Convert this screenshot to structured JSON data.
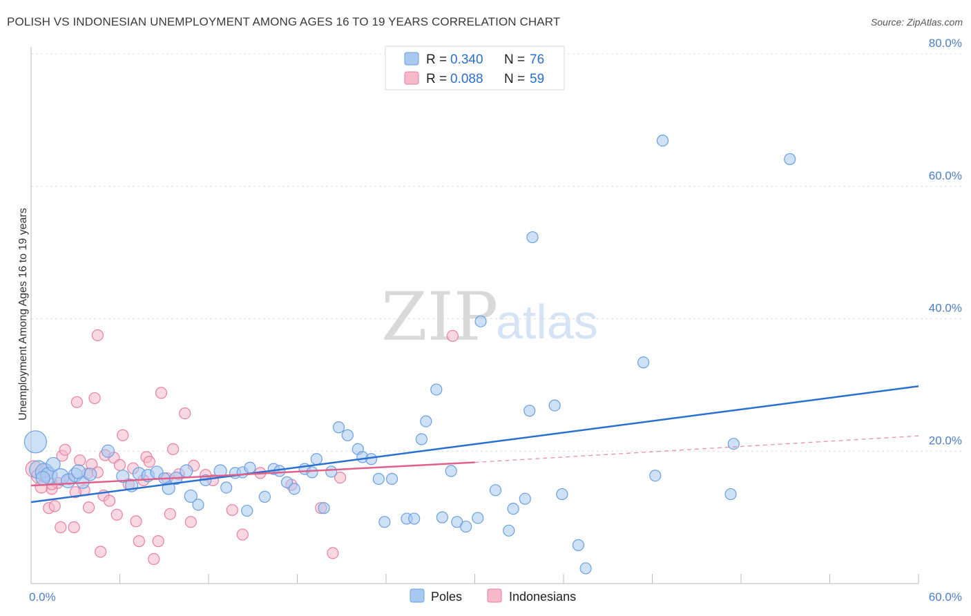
{
  "title": "POLISH VS INDONESIAN UNEMPLOYMENT AMONG AGES 16 TO 19 YEARS CORRELATION CHART",
  "source": "Source: ZipAtlas.com",
  "watermark": {
    "zip": "ZIP",
    "atlas": "atlas"
  },
  "colors": {
    "poles": "#a8c8f0",
    "poles_stroke": "#6a9fe0",
    "poles_line": "#2a6fd0",
    "indonesians": "#f6b8cb",
    "indonesians_stroke": "#e87fa0",
    "indonesians_line": "#e0608a",
    "axis_text": "#4a7ec9",
    "grid": "#dcdcdc"
  },
  "legend": {
    "poles": {
      "r_label": "R = ",
      "r_value": "0.340",
      "n_label": "N = ",
      "n_value": "76"
    },
    "indonesians": {
      "r_label": "R = ",
      "r_value": "0.088",
      "n_label": "N = ",
      "n_value": "59"
    }
  },
  "chart_data": {
    "type": "scatter",
    "ylabel": "Unemployment Among Ages 16 to 19 years",
    "xlim": [
      0,
      60
    ],
    "ylim": [
      0,
      80
    ],
    "x_tick_labels": [
      "0.0%",
      "60.0%"
    ],
    "y_tick_labels": [
      "20.0%",
      "40.0%",
      "60.0%",
      "80.0%"
    ],
    "y_tick_values": [
      20,
      40,
      60,
      80
    ],
    "series": [
      {
        "name": "Poles",
        "trend": {
          "x": [
            0,
            60
          ],
          "y": [
            12.3,
            29.8
          ],
          "style": "solid"
        },
        "points": [
          [
            0.3,
            21.4,
            16
          ],
          [
            0.5,
            17.2,
            13
          ],
          [
            0.9,
            16.8,
            13
          ],
          [
            1.2,
            16.3,
            12
          ],
          [
            1.5,
            18.0,
            10
          ],
          [
            2.0,
            16.1,
            12
          ],
          [
            2.5,
            15.5,
            10
          ],
          [
            3.0,
            16.4,
            10
          ],
          [
            3.5,
            15.3,
            9
          ],
          [
            4.0,
            16.5,
            9
          ],
          [
            5.2,
            20.0,
            9
          ],
          [
            6.2,
            16.2,
            9
          ],
          [
            6.8,
            14.8,
            9
          ],
          [
            7.3,
            16.6,
            9
          ],
          [
            7.9,
            16.3,
            9
          ],
          [
            8.5,
            16.8,
            9
          ],
          [
            9.0,
            15.9,
            8
          ],
          [
            9.3,
            14.4,
            9
          ],
          [
            9.8,
            15.9,
            9
          ],
          [
            10.5,
            17.0,
            9
          ],
          [
            10.8,
            13.2,
            9
          ],
          [
            11.3,
            11.9,
            8
          ],
          [
            11.8,
            15.6,
            8
          ],
          [
            12.8,
            17.0,
            9
          ],
          [
            13.2,
            14.5,
            8
          ],
          [
            13.8,
            16.7,
            8
          ],
          [
            14.3,
            16.8,
            8
          ],
          [
            14.6,
            11.0,
            8
          ],
          [
            14.8,
            17.5,
            8
          ],
          [
            15.8,
            13.1,
            8
          ],
          [
            16.4,
            17.3,
            8
          ],
          [
            16.8,
            17.0,
            8
          ],
          [
            17.3,
            15.3,
            8
          ],
          [
            17.8,
            14.3,
            8
          ],
          [
            18.5,
            17.3,
            8
          ],
          [
            19.0,
            16.8,
            8
          ],
          [
            19.3,
            18.8,
            8
          ],
          [
            19.8,
            11.4,
            8
          ],
          [
            20.3,
            16.9,
            8
          ],
          [
            20.8,
            23.6,
            8
          ],
          [
            21.4,
            22.4,
            8
          ],
          [
            22.1,
            20.3,
            8
          ],
          [
            22.4,
            19.1,
            8
          ],
          [
            23.0,
            18.8,
            8
          ],
          [
            23.5,
            15.8,
            8
          ],
          [
            23.9,
            9.3,
            8
          ],
          [
            24.4,
            15.8,
            8
          ],
          [
            25.4,
            9.8,
            8
          ],
          [
            25.9,
            9.8,
            8
          ],
          [
            26.4,
            21.8,
            8
          ],
          [
            26.7,
            24.5,
            8
          ],
          [
            27.4,
            29.3,
            8
          ],
          [
            27.8,
            10.0,
            8
          ],
          [
            28.4,
            17.0,
            8
          ],
          [
            28.8,
            9.3,
            8
          ],
          [
            29.4,
            8.6,
            8
          ],
          [
            30.4,
            39.6,
            8
          ],
          [
            30.2,
            9.9,
            8
          ],
          [
            31.4,
            14.1,
            8
          ],
          [
            32.3,
            8.0,
            8
          ],
          [
            32.6,
            11.3,
            8
          ],
          [
            33.4,
            12.8,
            8
          ],
          [
            33.7,
            26.1,
            8
          ],
          [
            33.9,
            52.3,
            8
          ],
          [
            35.4,
            26.9,
            8
          ],
          [
            35.9,
            13.5,
            8
          ],
          [
            37.0,
            5.8,
            8
          ],
          [
            37.5,
            2.3,
            8
          ],
          [
            41.4,
            33.4,
            8
          ],
          [
            42.2,
            16.3,
            8
          ],
          [
            42.7,
            66.9,
            8
          ],
          [
            47.3,
            13.5,
            8
          ],
          [
            47.5,
            21.1,
            8
          ],
          [
            51.3,
            64.1,
            8
          ],
          [
            0.8,
            15.9,
            10
          ],
          [
            3.2,
            16.9,
            10
          ]
        ]
      },
      {
        "name": "Indonesians",
        "trend": {
          "x": [
            0,
            30
          ],
          "y": [
            14.8,
            18.3
          ],
          "style": "solid",
          "extension": {
            "x": [
              30,
              60
            ],
            "y": [
              18.3,
              22.3
            ],
            "style": "dashed"
          }
        },
        "points": [
          [
            0.2,
            17.3,
            12
          ],
          [
            0.5,
            16.2,
            10
          ],
          [
            0.7,
            14.6,
            9
          ],
          [
            1.0,
            17.0,
            10
          ],
          [
            1.2,
            11.4,
            8
          ],
          [
            1.4,
            14.3,
            8
          ],
          [
            1.6,
            11.7,
            8
          ],
          [
            1.8,
            15.2,
            8
          ],
          [
            2.1,
            19.3,
            8
          ],
          [
            2.3,
            20.2,
            8
          ],
          [
            2.6,
            15.8,
            8
          ],
          [
            2.9,
            8.5,
            8
          ],
          [
            3.1,
            27.4,
            8
          ],
          [
            3.3,
            18.6,
            8
          ],
          [
            3.6,
            14.1,
            8
          ],
          [
            3.8,
            16.6,
            8
          ],
          [
            3.9,
            11.5,
            8
          ],
          [
            4.1,
            18.0,
            8
          ],
          [
            4.3,
            28.0,
            8
          ],
          [
            4.5,
            16.8,
            8
          ],
          [
            4.7,
            4.8,
            8
          ],
          [
            4.9,
            13.3,
            8
          ],
          [
            5.0,
            19.4,
            8
          ],
          [
            5.3,
            12.5,
            8
          ],
          [
            5.6,
            19.0,
            8
          ],
          [
            5.8,
            10.4,
            8
          ],
          [
            6.0,
            17.9,
            8
          ],
          [
            6.2,
            22.4,
            8
          ],
          [
            6.6,
            15.0,
            8
          ],
          [
            6.9,
            17.4,
            8
          ],
          [
            7.1,
            9.4,
            8
          ],
          [
            7.3,
            6.4,
            8
          ],
          [
            7.6,
            15.6,
            8
          ],
          [
            7.8,
            19.1,
            8
          ],
          [
            8.0,
            18.4,
            8
          ],
          [
            8.3,
            3.7,
            8
          ],
          [
            8.6,
            6.4,
            8
          ],
          [
            8.8,
            28.8,
            8
          ],
          [
            9.2,
            15.9,
            8
          ],
          [
            9.4,
            10.5,
            8
          ],
          [
            9.6,
            20.3,
            8
          ],
          [
            10.0,
            16.5,
            8
          ],
          [
            10.4,
            25.7,
            8
          ],
          [
            10.8,
            9.3,
            8
          ],
          [
            11.0,
            17.8,
            8
          ],
          [
            11.8,
            16.4,
            8
          ],
          [
            12.3,
            15.6,
            8
          ],
          [
            13.6,
            11.1,
            8
          ],
          [
            14.3,
            7.4,
            8
          ],
          [
            15.5,
            16.7,
            8
          ],
          [
            17.6,
            14.9,
            8
          ],
          [
            19.6,
            11.4,
            8
          ],
          [
            20.4,
            4.6,
            8
          ],
          [
            20.9,
            16.0,
            8
          ],
          [
            28.5,
            37.4,
            8
          ],
          [
            4.5,
            37.5,
            8
          ],
          [
            2.0,
            8.5,
            8
          ],
          [
            1.4,
            15.0,
            8
          ],
          [
            3.0,
            13.8,
            8
          ]
        ]
      }
    ],
    "legend_position": "top-center"
  },
  "bottom_legend": [
    {
      "label": "Poles"
    },
    {
      "label": "Indonesians"
    }
  ]
}
